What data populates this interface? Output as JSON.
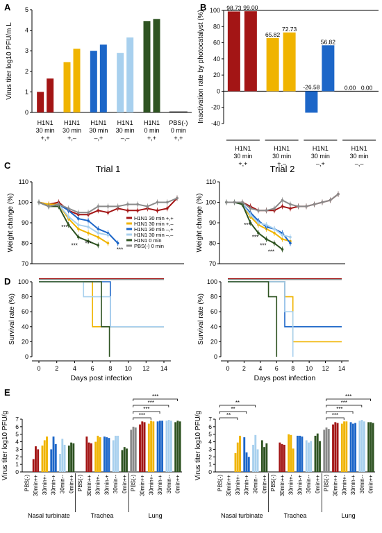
{
  "colors": {
    "pp": "#a31515",
    "pm": "#f0b400",
    "mp": "#1c66c8",
    "mm": "#a8d0ee",
    "h0": "#2e5321",
    "pbs": "#8a8a8a"
  },
  "chart_data": [
    {
      "panel": "A",
      "type": "bar",
      "ylabel": "Virus titer log10 PFU/m L",
      "ylim": [
        0,
        5
      ],
      "yticks": [
        0,
        1,
        2,
        3,
        4,
        5
      ],
      "categories": [
        {
          "line1": "H1N1",
          "line2": "30 min",
          "line3": "+,+",
          "color": "pp"
        },
        {
          "line1": "H1N1",
          "line2": "30 min",
          "line3": "+,–",
          "color": "pm"
        },
        {
          "line1": "H1N1",
          "line2": "30 min",
          "line3": "–,+",
          "color": "mp"
        },
        {
          "line1": "H1N1",
          "line2": "30 min",
          "line3": "–,–",
          "color": "mm"
        },
        {
          "line1": "H1N1",
          "line2": "0 min",
          "line3": "+,+",
          "color": "h0"
        },
        {
          "line1": "PBS(-)",
          "line2": "0 min",
          "line3": "+,+",
          "color": "pbs"
        }
      ],
      "values": [
        [
          1.0,
          1.65
        ],
        [
          2.45,
          3.1
        ],
        [
          3.0,
          3.3
        ],
        [
          2.9,
          3.65
        ],
        [
          4.45,
          4.55
        ],
        [
          0,
          0
        ]
      ]
    },
    {
      "panel": "B",
      "type": "bar",
      "ylabel": "Inactivation rate by photocatalyst (%)",
      "ylim": [
        -40,
        100
      ],
      "yticks": [
        -40,
        -20,
        0,
        20,
        40,
        60,
        80,
        100
      ],
      "categories": [
        {
          "line1": "H1N1",
          "line2": "30 min",
          "line3": "+,+",
          "color": "pp"
        },
        {
          "line1": "H1N1",
          "line2": "30 min",
          "line3": "+,–",
          "color": "pm"
        },
        {
          "line1": "H1N1",
          "line2": "30 min",
          "line3": "–,+",
          "color": "mp"
        },
        {
          "line1": "H1N1",
          "line2": "30 min",
          "line3": "–,–",
          "color": "mm"
        }
      ],
      "values": [
        [
          98.73,
          99.0
        ],
        [
          65.82,
          72.73
        ],
        [
          -26.58,
          56.82
        ],
        [
          0.0,
          0.0
        ]
      ],
      "labels": [
        [
          "98.73",
          "99.00"
        ],
        [
          "65.82",
          "72.73"
        ],
        [
          "-26.58",
          "56.82"
        ],
        [
          "0.00",
          "0.00"
        ]
      ]
    },
    {
      "panel": "C",
      "type": "line",
      "title": "Trial 1",
      "ylabel": "Weight change (%)",
      "ylim": [
        70,
        110
      ],
      "yticks": [
        70,
        80,
        90,
        100,
        110
      ],
      "x": [
        0,
        1,
        2,
        3,
        4,
        5,
        6,
        7,
        8,
        9,
        10,
        11,
        12,
        13,
        14
      ],
      "annotations": [
        {
          "text": "***",
          "x": 2.6,
          "y": 87
        },
        {
          "text": "***",
          "x": 3.6,
          "y": 78
        },
        {
          "text": "***",
          "x": 5.0,
          "y": 79
        },
        {
          "text": "***",
          "x": 8.2,
          "y": 76
        }
      ],
      "series": [
        {
          "name": "H1N1 30 min +,+",
          "color": "pp",
          "values": [
            100,
            99,
            100,
            96,
            94,
            94,
            96,
            95,
            97,
            96,
            96,
            97,
            96,
            97,
            102
          ]
        },
        {
          "name": "H1N1 30 min +,–",
          "color": "pm",
          "values": [
            100,
            99,
            99,
            92,
            87,
            85,
            83,
            80,
            null,
            null,
            null,
            null,
            null,
            null,
            null
          ]
        },
        {
          "name": "H1N1 30 min –,+",
          "color": "mp",
          "values": [
            100,
            98,
            99,
            96,
            92,
            91,
            87,
            85,
            80,
            null,
            null,
            null,
            null,
            null,
            null
          ]
        },
        {
          "name": "H1N1 30 min –,–",
          "color": "mm",
          "values": [
            100,
            98,
            99,
            93,
            89,
            88,
            85,
            84,
            null,
            null,
            null,
            null,
            null,
            null,
            null
          ]
        },
        {
          "name": "H1N1 0 min",
          "color": "h0",
          "values": [
            100,
            98,
            98,
            89,
            83,
            81,
            79,
            null,
            null,
            null,
            null,
            null,
            null,
            null,
            null
          ]
        },
        {
          "name": "PBS(-) 0 min",
          "color": "pbs",
          "values": [
            100,
            98,
            99,
            97,
            95,
            95,
            98,
            98,
            98,
            99,
            99,
            98,
            100,
            100,
            102
          ]
        }
      ]
    },
    {
      "panel": "C",
      "type": "line",
      "title": "Trial 2",
      "ylabel": "Weight change (%)",
      "ylim": [
        70,
        110
      ],
      "yticks": [
        70,
        80,
        90,
        100,
        110
      ],
      "x": [
        0,
        1,
        2,
        3,
        4,
        5,
        6,
        7,
        8,
        9,
        10,
        11,
        12,
        13,
        14
      ],
      "annotations": [
        {
          "text": "***",
          "x": 2.6,
          "y": 88
        },
        {
          "text": "***",
          "x": 3.6,
          "y": 82
        },
        {
          "text": "***",
          "x": 4.6,
          "y": 78
        },
        {
          "text": "***",
          "x": 5.6,
          "y": 75
        }
      ],
      "series": [
        {
          "name": "H1N1 30 min +,+",
          "color": "pp",
          "values": [
            100,
            100,
            100,
            98,
            96,
            96,
            96,
            98,
            97,
            98,
            98,
            99,
            100,
            101,
            104
          ]
        },
        {
          "name": "H1N1 30 min +,–",
          "color": "pm",
          "values": [
            100,
            100,
            99,
            93,
            89,
            87,
            85,
            82,
            81,
            null,
            null,
            null,
            null,
            null,
            null
          ]
        },
        {
          "name": "H1N1 30 min –,+",
          "color": "mp",
          "values": [
            100,
            100,
            99,
            95,
            91,
            88,
            87,
            85,
            80,
            null,
            null,
            null,
            null,
            null,
            null
          ]
        },
        {
          "name": "H1N1 30 min –,–",
          "color": "mm",
          "values": [
            100,
            100,
            99,
            94,
            90,
            89,
            87,
            84,
            83,
            null,
            null,
            null,
            null,
            null,
            null
          ]
        },
        {
          "name": "H1N1 0 min",
          "color": "h0",
          "values": [
            100,
            100,
            99,
            90,
            85,
            82,
            80,
            77,
            null,
            null,
            null,
            null,
            null,
            null,
            null
          ]
        },
        {
          "name": "PBS(-) 0 min",
          "color": "pbs",
          "values": [
            100,
            100,
            100,
            97,
            96,
            96,
            97,
            101,
            99,
            98,
            98,
            99,
            100,
            101,
            104
          ]
        }
      ]
    },
    {
      "panel": "D",
      "type": "line",
      "ylabel": "Survival rate (%)",
      "xlabel": "Days post infection",
      "ylim": [
        0,
        100
      ],
      "xlim": [
        0,
        14
      ],
      "yticks": [
        0,
        20,
        40,
        60,
        80,
        100
      ],
      "xticks": [
        0,
        2,
        4,
        6,
        8,
        10,
        12,
        14
      ],
      "series": [
        {
          "color": "pp",
          "points": [
            [
              0,
              104
            ],
            [
              14,
              104
            ]
          ]
        },
        {
          "color": "pbs",
          "points": [
            [
              0,
              103
            ],
            [
              14,
              103
            ]
          ]
        },
        {
          "color": "pm",
          "points": [
            [
              0,
              100
            ],
            [
              6,
              100
            ],
            [
              6,
              40
            ],
            [
              14,
              40
            ]
          ]
        },
        {
          "color": "mp",
          "points": [
            [
              0,
              100
            ],
            [
              8,
              100
            ],
            [
              8,
              40
            ],
            [
              14,
              40
            ]
          ]
        },
        {
          "color": "mm",
          "points": [
            [
              0,
              100
            ],
            [
              5,
              100
            ],
            [
              5,
              80
            ],
            [
              8,
              80
            ],
            [
              8,
              40
            ],
            [
              14,
              40
            ]
          ]
        },
        {
          "color": "h0",
          "points": [
            [
              0,
              100
            ],
            [
              7,
              100
            ],
            [
              7,
              40
            ],
            [
              7.9,
              40
            ],
            [
              7.9,
              0
            ]
          ]
        }
      ]
    },
    {
      "panel": "D",
      "type": "line",
      "ylabel": "Survival rate (%)",
      "xlabel": "Days post infection",
      "ylim": [
        0,
        100
      ],
      "xlim": [
        0,
        14
      ],
      "yticks": [
        0,
        20,
        40,
        60,
        80,
        100
      ],
      "xticks": [
        0,
        2,
        4,
        6,
        8,
        10,
        12,
        14
      ],
      "series": [
        {
          "color": "pp",
          "points": [
            [
              0,
              104
            ],
            [
              14,
              104
            ]
          ]
        },
        {
          "color": "pbs",
          "points": [
            [
              0,
              103
            ],
            [
              14,
              103
            ]
          ]
        },
        {
          "color": "pm",
          "points": [
            [
              0,
              100
            ],
            [
              7,
              100
            ],
            [
              7,
              80
            ],
            [
              8,
              80
            ],
            [
              8,
              20
            ],
            [
              14,
              20
            ]
          ]
        },
        {
          "color": "mp",
          "points": [
            [
              0,
              100
            ],
            [
              7,
              100
            ],
            [
              7,
              40
            ],
            [
              14,
              40
            ]
          ]
        },
        {
          "color": "mm",
          "points": [
            [
              0,
              100
            ],
            [
              7,
              100
            ],
            [
              7,
              60
            ],
            [
              8,
              60
            ],
            [
              8,
              0
            ]
          ]
        },
        {
          "color": "h0",
          "points": [
            [
              0,
              100
            ],
            [
              5,
              100
            ],
            [
              5,
              80
            ],
            [
              6,
              80
            ],
            [
              6,
              0
            ]
          ]
        }
      ]
    },
    {
      "panel": "E",
      "type": "bar",
      "ylabel": "Virus titer log10 PFU/g",
      "ylim": [
        0,
        7
      ],
      "yticks": [
        0,
        1,
        2,
        3,
        4,
        5,
        6,
        7
      ],
      "tick_labels": [
        "PBS(-)",
        "30min++",
        "30min+-",
        "30min-+",
        "30min--",
        "0min++"
      ],
      "group_colors": [
        "pbs",
        "pp",
        "pm",
        "mp",
        "mm",
        "h0"
      ],
      "tissues": [
        {
          "name": "Nasal turbinate",
          "values": [
            [],
            [
              1.7,
              3.4,
              3.0
            ],
            [
              3.5,
              4.2,
              4.7
            ],
            [
              3.0,
              4.7,
              3.7
            ],
            [
              2.4,
              4.4,
              3.6
            ],
            [
              3.5,
              3.9,
              3.8
            ]
          ]
        },
        {
          "name": "Trachea",
          "values": [
            [],
            [
              4.7,
              3.9,
              3.8
            ],
            [
              4.0,
              4.8,
              4.6
            ],
            [
              4.7,
              4.6,
              4.5
            ],
            [
              4.2,
              4.8,
              4.8
            ],
            [
              2.9,
              3.3,
              3.1
            ]
          ]
        },
        {
          "name": "Lung",
          "values": [
            [
              5.6,
              6.0,
              5.9
            ],
            [
              6.3,
              6.7,
              6.6
            ],
            [
              6.4,
              6.8,
              6.7
            ],
            [
              6.7,
              6.8,
              6.8
            ],
            [
              6.8,
              6.9,
              6.8
            ],
            [
              6.6,
              6.8,
              6.7
            ]
          ]
        }
      ],
      "significance": [
        {
          "tissue": "Lung",
          "from": "PBS(-)",
          "to": "30min+-",
          "label": "***"
        },
        {
          "tissue": "Lung",
          "from": "PBS(-)",
          "to": "30min-+",
          "label": "***"
        },
        {
          "tissue": "Lung",
          "from": "PBS(-)",
          "to": "30min--",
          "label": "***"
        },
        {
          "tissue": "Lung",
          "from": "PBS(-)",
          "to": "0min++",
          "label": "***"
        }
      ]
    },
    {
      "panel": "E",
      "type": "bar",
      "ylabel": "Virus titer log10 PFU/g",
      "ylim": [
        0,
        7
      ],
      "yticks": [
        0,
        1,
        2,
        3,
        4,
        5,
        6,
        7
      ],
      "tick_labels": [
        "PBS(-)",
        "30min++",
        "30min+-",
        "30min-+",
        "30min--",
        "0min++"
      ],
      "group_colors": [
        "pbs",
        "pp",
        "pm",
        "mp",
        "mm",
        "h0"
      ],
      "tissues": [
        {
          "name": "Nasal turbinate",
          "values": [
            [],
            [],
            [
              2.5,
              3.9,
              4.8
            ],
            [
              4.6,
              2.6,
              2.0
            ],
            [
              3.6,
              4.9,
              3.0
            ],
            [
              4.2,
              3.3,
              3.8
            ]
          ]
        },
        {
          "name": "Trachea",
          "values": [
            [],
            [
              3.9,
              3.7,
              3.6
            ],
            [
              5.0,
              4.9,
              3.1
            ],
            [
              4.8,
              4.8,
              4.7
            ],
            [
              4.2,
              3.9,
              4.1
            ],
            [
              4.8,
              5.1,
              4.1
            ]
          ]
        },
        {
          "name": "Lung",
          "values": [
            [
              5.6,
              5.9,
              5.7
            ],
            [
              6.3,
              6.6,
              6.5
            ],
            [
              6.4,
              6.7,
              6.7
            ],
            [
              6.6,
              6.4,
              6.5
            ],
            [
              6.8,
              6.9,
              6.7
            ],
            [
              6.6,
              6.6,
              6.5
            ]
          ]
        }
      ],
      "significance": [
        {
          "tissue": "Nasal turbinate",
          "from": "PBS(-)",
          "to": "30min+-",
          "label": "**"
        },
        {
          "tissue": "Nasal turbinate",
          "from": "PBS(-)",
          "to": "30min-+",
          "label": "**"
        },
        {
          "tissue": "Nasal turbinate",
          "from": "PBS(-)",
          "to": "30min--",
          "label": "**"
        },
        {
          "tissue": "Lung",
          "from": "PBS(-)",
          "to": "30min+-",
          "label": "***"
        },
        {
          "tissue": "Lung",
          "from": "PBS(-)",
          "to": "30min-+",
          "label": "***"
        },
        {
          "tissue": "Lung",
          "from": "PBS(-)",
          "to": "30min--",
          "label": "***"
        },
        {
          "tissue": "Lung",
          "from": "PBS(-)",
          "to": "0min++",
          "label": "***"
        }
      ]
    }
  ],
  "panel_letters": [
    "A",
    "B",
    "C",
    "D",
    "E"
  ]
}
